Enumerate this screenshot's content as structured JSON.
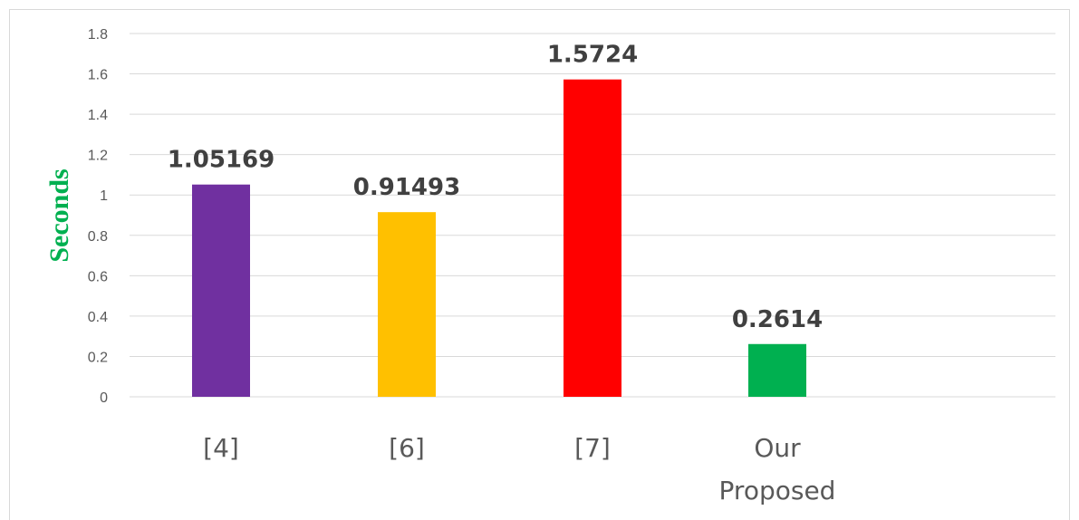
{
  "chart_data": {
    "type": "bar",
    "categories": [
      "[4]",
      "[6]",
      "[7]",
      "Our Proposed"
    ],
    "category_lines": [
      [
        "[4]"
      ],
      [
        "[6]"
      ],
      [
        "[7]"
      ],
      [
        "Our",
        "Proposed"
      ]
    ],
    "values": [
      1.05169,
      0.91493,
      1.5724,
      0.2614
    ],
    "data_labels": [
      "1.05169",
      "0.91493",
      "1.5724",
      "0.2614"
    ],
    "bar_colors": [
      "#7030a0",
      "#ffc000",
      "#ff0000",
      "#00b050"
    ],
    "title": "",
    "xlabel": "",
    "ylabel": "Seconds",
    "ylabel_color": "#00b050",
    "ylim": [
      0,
      1.8
    ],
    "yticks": [
      0,
      0.2,
      0.4,
      0.6,
      0.8,
      1,
      1.2,
      1.4,
      1.6,
      1.8
    ],
    "ytick_labels": [
      "0",
      "0.2",
      "0.4",
      "0.6",
      "0.8",
      "1",
      "1.2",
      "1.4",
      "1.6",
      "1.8"
    ],
    "grid": true,
    "legend": "none"
  }
}
